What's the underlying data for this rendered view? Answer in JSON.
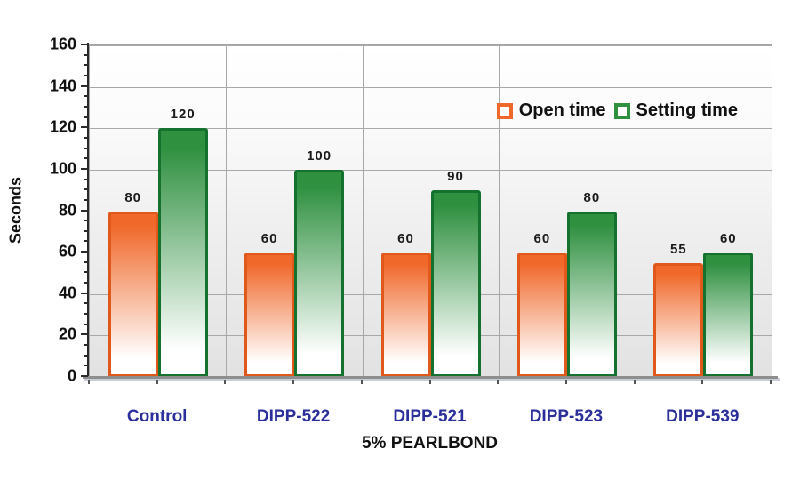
{
  "chart_data": {
    "type": "bar",
    "title": "",
    "categories": [
      "Control",
      "DIPP-522",
      "DIPP-521",
      "DIPP-523",
      "DIPP-539"
    ],
    "series": [
      {
        "name": "Open time",
        "values": [
          80,
          60,
          60,
          60,
          55
        ],
        "color_top": "#f0682a",
        "color_border": "#e0581a"
      },
      {
        "name": "Setting time",
        "values": [
          120,
          100,
          90,
          80,
          60
        ],
        "color_top": "#2f9040",
        "color_border": "#15722e"
      }
    ],
    "xlabel": "5% PEARLBOND",
    "ylabel": "Seconds",
    "ylim": [
      0,
      160
    ],
    "ytick_step": 20,
    "yminor_step": 5,
    "grid": true,
    "legend_position": "top-right",
    "bar_labels_shown": true
  },
  "colors": {
    "category_label": "#2b2f9b",
    "gridline": "#a8a8a8",
    "x_axis": "#8e8e8e",
    "y_axis": "#2a2a2a",
    "text": "#111111",
    "plot_bg_top": "#ffffff",
    "plot_bg_bottom": "#e2e2e2"
  }
}
